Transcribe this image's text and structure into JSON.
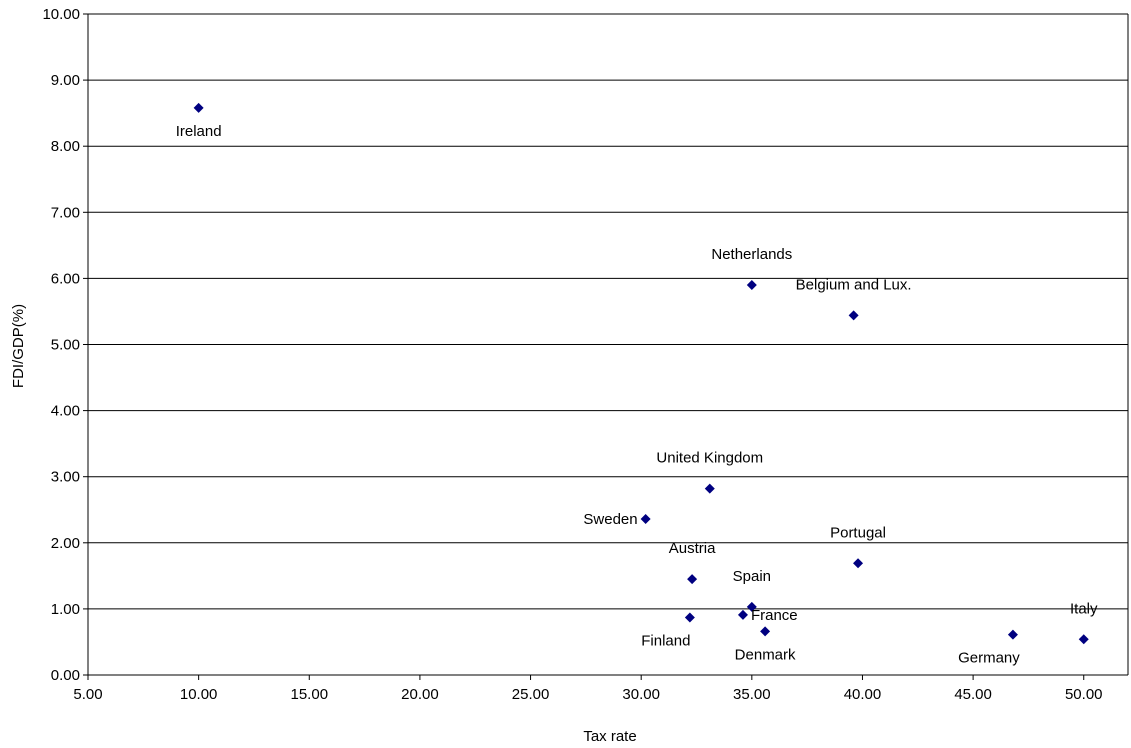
{
  "chart_data": {
    "type": "scatter",
    "title": "",
    "xlabel": "Tax rate",
    "ylabel": "FDI/GDP(%)",
    "xlim": [
      5,
      52
    ],
    "ylim": [
      0,
      10
    ],
    "xticks": [
      "5.00",
      "10.00",
      "15.00",
      "20.00",
      "25.00",
      "30.00",
      "35.00",
      "40.00",
      "45.00",
      "50.00"
    ],
    "yticks": [
      "0.00",
      "1.00",
      "2.00",
      "3.00",
      "4.00",
      "5.00",
      "6.00",
      "7.00",
      "8.00",
      "9.00",
      "10.00"
    ],
    "grid": "horizontal",
    "marker": "diamond",
    "marker_color": "#000080",
    "points": [
      {
        "label": "Ireland",
        "x": 10.0,
        "y": 8.58,
        "label_pos": "below"
      },
      {
        "label": "Netherlands",
        "x": 35.0,
        "y": 5.9,
        "label_pos": "above"
      },
      {
        "label": "Belgium and Lux.",
        "x": 39.6,
        "y": 5.44,
        "label_pos": "above"
      },
      {
        "label": "United Kingdom",
        "x": 33.1,
        "y": 2.82,
        "label_pos": "above"
      },
      {
        "label": "Sweden",
        "x": 30.2,
        "y": 2.36,
        "label_pos": "left"
      },
      {
        "label": "Portugal",
        "x": 39.8,
        "y": 1.69,
        "label_pos": "above"
      },
      {
        "label": "Austria",
        "x": 32.3,
        "y": 1.45,
        "label_pos": "above"
      },
      {
        "label": "Spain",
        "x": 35.0,
        "y": 1.03,
        "label_pos": "above"
      },
      {
        "label": "Finland",
        "x": 32.2,
        "y": 0.87,
        "label_pos": "below-left"
      },
      {
        "label": "France",
        "x": 34.6,
        "y": 0.91,
        "label_pos": "right"
      },
      {
        "label": "Denmark",
        "x": 35.6,
        "y": 0.66,
        "label_pos": "below"
      },
      {
        "label": "Germany",
        "x": 46.8,
        "y": 0.61,
        "label_pos": "below-left"
      },
      {
        "label": "Italy",
        "x": 50.0,
        "y": 0.54,
        "label_pos": "above"
      }
    ]
  }
}
